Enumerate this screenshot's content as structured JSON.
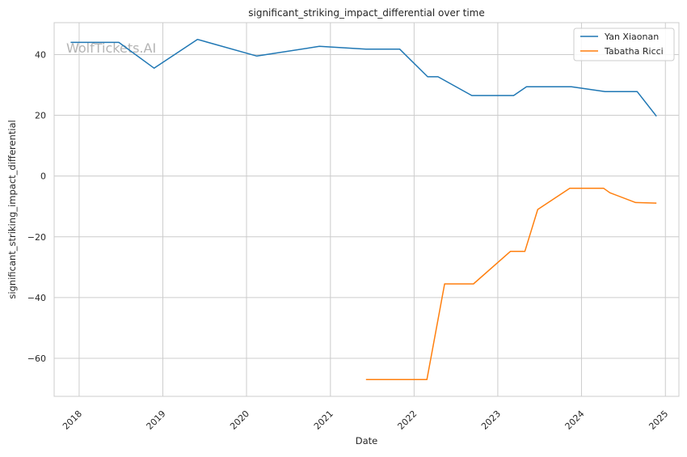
{
  "chart_data": {
    "type": "line",
    "title": "significant_striking_impact_differential over time",
    "xlabel": "Date",
    "ylabel": "significant_striking_impact_differential",
    "x_ticks": [
      "2018",
      "2019",
      "2020",
      "2021",
      "2022",
      "2023",
      "2024",
      "2025"
    ],
    "y_ticks": [
      -60,
      -40,
      -20,
      0,
      20,
      40
    ],
    "xlim": [
      "2017-09-14",
      "2025-03-01"
    ],
    "ylim": [
      -72.5,
      50.5
    ],
    "grid": true,
    "legend_position": "top-right",
    "watermark": "WolfTickets.AI",
    "series": [
      {
        "name": "Yan Xiaonan",
        "color": "#1f77b4",
        "points": [
          [
            "2017-11-25",
            44.0
          ],
          [
            "2018-06-23",
            44.0
          ],
          [
            "2018-11-24",
            35.5
          ],
          [
            "2019-06-01",
            45.0
          ],
          [
            "2020-02-15",
            39.5
          ],
          [
            "2020-11-14",
            42.7
          ],
          [
            "2021-06-05",
            41.8
          ],
          [
            "2021-10-30",
            41.8
          ],
          [
            "2022-03-01",
            32.7
          ],
          [
            "2022-04-15",
            32.7
          ],
          [
            "2022-09-10",
            26.5
          ],
          [
            "2023-03-11",
            26.5
          ],
          [
            "2023-05-06",
            29.4
          ],
          [
            "2023-11-18",
            29.4
          ],
          [
            "2024-04-13",
            27.8
          ],
          [
            "2024-08-31",
            27.8
          ],
          [
            "2024-11-23",
            19.7
          ]
        ]
      },
      {
        "name": "Tabatha Ricci",
        "color": "#ff7f0e",
        "points": [
          [
            "2021-06-05",
            -67.0
          ],
          [
            "2022-02-26",
            -67.0
          ],
          [
            "2022-05-14",
            -35.5
          ],
          [
            "2022-09-17",
            -35.5
          ],
          [
            "2023-02-25",
            -24.8
          ],
          [
            "2023-04-29",
            -24.8
          ],
          [
            "2023-06-24",
            -11.0
          ],
          [
            "2023-11-11",
            -4.0
          ],
          [
            "2024-04-06",
            -4.0
          ],
          [
            "2024-05-04",
            -5.5
          ],
          [
            "2024-08-24",
            -8.7
          ],
          [
            "2024-11-23",
            -8.9
          ]
        ]
      }
    ]
  }
}
